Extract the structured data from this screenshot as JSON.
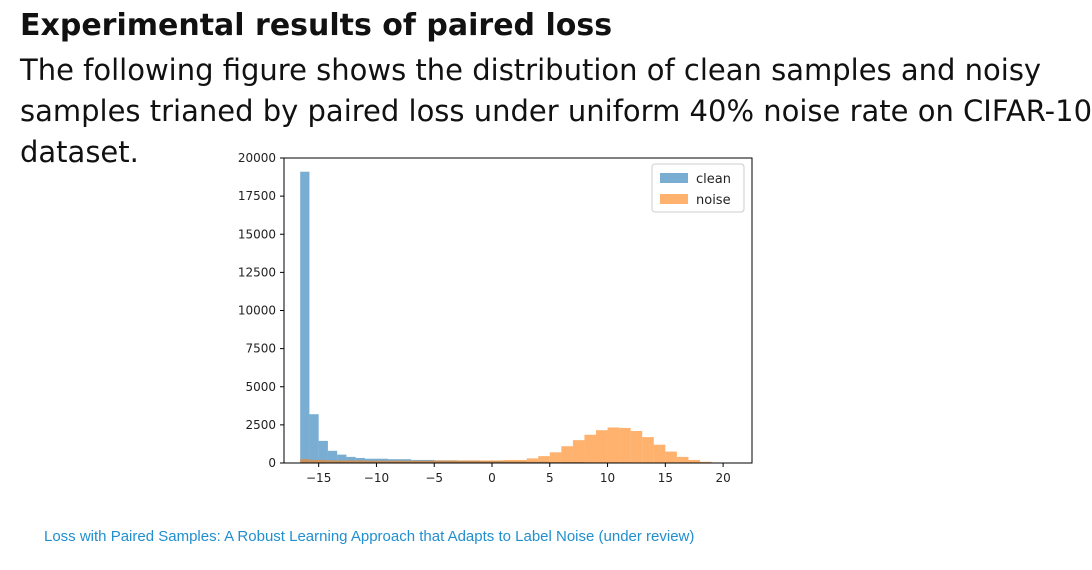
{
  "slide": {
    "title": "Experimental results of paired loss",
    "body_lines": [
      "The following figure shows the distribution of clean samples and noisy",
      "samples trianed by paired loss under uniform 40% noise rate on CIFAR-10",
      "dataset."
    ],
    "citation": "Loss with Paired Samples: A Robust Learning Approach that Adapts to Label Noise (under review)"
  },
  "chart_data": {
    "type": "bar",
    "title": "",
    "xlabel": "",
    "ylabel": "",
    "xlim": [
      -18,
      22.5
    ],
    "ylim": [
      0,
      20000
    ],
    "x_ticks": [
      -15,
      -10,
      -5,
      0,
      5,
      10,
      15,
      20
    ],
    "x_tick_labels": [
      "−15",
      "−10",
      "−5",
      "0",
      "5",
      "10",
      "15",
      "20"
    ],
    "y_ticks": [
      0,
      2500,
      5000,
      7500,
      10000,
      12500,
      15000,
      17500,
      20000
    ],
    "y_tick_labels": [
      "0",
      "2500",
      "5000",
      "7500",
      "10000",
      "12500",
      "15000",
      "17500",
      "20000"
    ],
    "legend": "top-right",
    "grid": false,
    "series": [
      {
        "name": "clean",
        "color": "#1f77b4",
        "opacity": 0.6,
        "bins": [
          {
            "x0": -16.6,
            "x1": -15.8,
            "y": 19100
          },
          {
            "x0": -15.8,
            "x1": -15.0,
            "y": 3200
          },
          {
            "x0": -15.0,
            "x1": -14.2,
            "y": 1450
          },
          {
            "x0": -14.2,
            "x1": -13.4,
            "y": 800
          },
          {
            "x0": -13.4,
            "x1": -12.6,
            "y": 550
          },
          {
            "x0": -12.6,
            "x1": -11.8,
            "y": 400
          },
          {
            "x0": -11.8,
            "x1": -11.0,
            "y": 330
          },
          {
            "x0": -11.0,
            "x1": -9.0,
            "y": 280
          },
          {
            "x0": -9.0,
            "x1": -7.0,
            "y": 250
          },
          {
            "x0": -7.0,
            "x1": -5.0,
            "y": 200
          },
          {
            "x0": -5.0,
            "x1": -3.0,
            "y": 170
          },
          {
            "x0": -3.0,
            "x1": -1.0,
            "y": 150
          },
          {
            "x0": -1.0,
            "x1": 1.0,
            "y": 120
          },
          {
            "x0": 1.0,
            "x1": 3.0,
            "y": 100
          },
          {
            "x0": 3.0,
            "x1": 5.0,
            "y": 80
          },
          {
            "x0": 5.0,
            "x1": 8.0,
            "y": 60
          },
          {
            "x0": 8.0,
            "x1": 12.0,
            "y": 40
          },
          {
            "x0": 12.0,
            "x1": 16.0,
            "y": 30
          },
          {
            "x0": 16.0,
            "x1": 19.0,
            "y": 20
          }
        ]
      },
      {
        "name": "noise",
        "color": "#ff7f0e",
        "opacity": 0.6,
        "bins": [
          {
            "x0": -16.6,
            "x1": -15.8,
            "y": 250
          },
          {
            "x0": -15.8,
            "x1": -14.2,
            "y": 200
          },
          {
            "x0": -14.2,
            "x1": -11.0,
            "y": 170
          },
          {
            "x0": -11.0,
            "x1": -5.0,
            "y": 150
          },
          {
            "x0": -5.0,
            "x1": 1.0,
            "y": 170
          },
          {
            "x0": 1.0,
            "x1": 3.0,
            "y": 200
          },
          {
            "x0": 3.0,
            "x1": 4.0,
            "y": 300
          },
          {
            "x0": 4.0,
            "x1": 5.0,
            "y": 450
          },
          {
            "x0": 5.0,
            "x1": 6.0,
            "y": 700
          },
          {
            "x0": 6.0,
            "x1": 7.0,
            "y": 1100
          },
          {
            "x0": 7.0,
            "x1": 8.0,
            "y": 1500
          },
          {
            "x0": 8.0,
            "x1": 9.0,
            "y": 1850
          },
          {
            "x0": 9.0,
            "x1": 10.0,
            "y": 2150
          },
          {
            "x0": 10.0,
            "x1": 11.0,
            "y": 2330
          },
          {
            "x0": 11.0,
            "x1": 12.0,
            "y": 2300
          },
          {
            "x0": 12.0,
            "x1": 13.0,
            "y": 2100
          },
          {
            "x0": 13.0,
            "x1": 14.0,
            "y": 1700
          },
          {
            "x0": 14.0,
            "x1": 15.0,
            "y": 1200
          },
          {
            "x0": 15.0,
            "x1": 16.0,
            "y": 750
          },
          {
            "x0": 16.0,
            "x1": 17.0,
            "y": 400
          },
          {
            "x0": 17.0,
            "x1": 18.0,
            "y": 200
          },
          {
            "x0": 18.0,
            "x1": 19.0,
            "y": 80
          }
        ]
      }
    ]
  }
}
